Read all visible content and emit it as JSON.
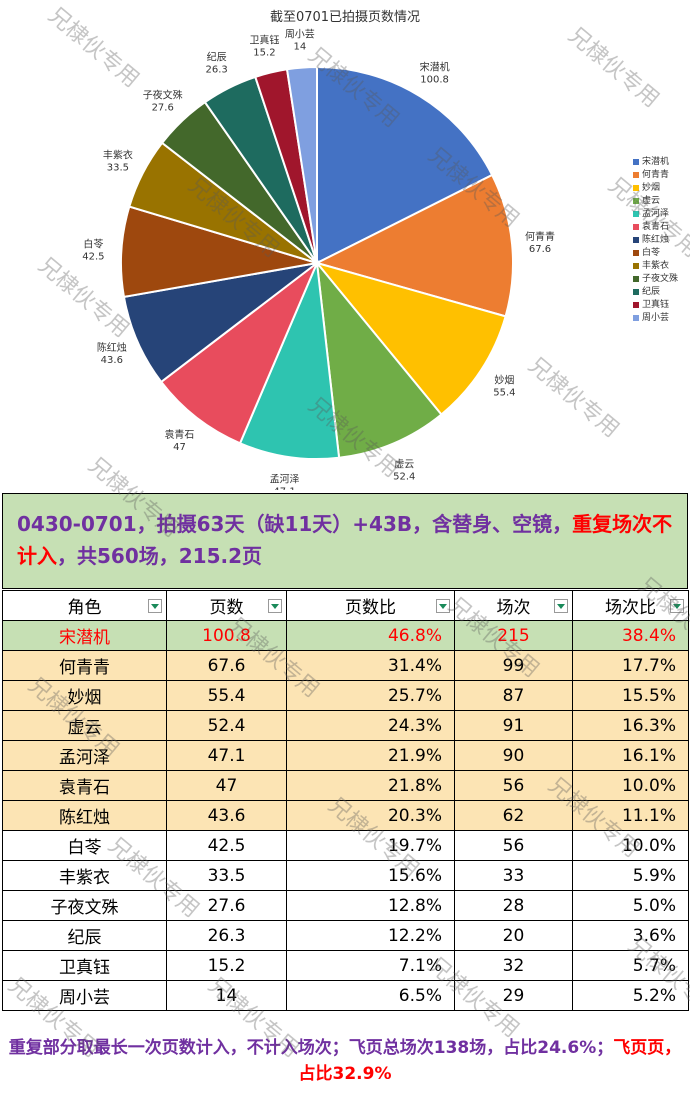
{
  "chart_data": {
    "type": "pie",
    "title": "截至0701已拍摄页数情况",
    "slices": [
      {
        "name": "宋潜机",
        "value": 100.8,
        "color": "#4472c4"
      },
      {
        "name": "何青青",
        "value": 67.6,
        "color": "#ed7d31"
      },
      {
        "name": "妙烟",
        "value": 55.4,
        "color": "#ffc000"
      },
      {
        "name": "虚云",
        "value": 52.4,
        "color": "#70ad47"
      },
      {
        "name": "孟河泽",
        "value": 47.1,
        "color": "#2ec4b0"
      },
      {
        "name": "袁青石",
        "value": 47,
        "color": "#e84c5d"
      },
      {
        "name": "陈红烛",
        "value": 43.6,
        "color": "#264478"
      },
      {
        "name": "白苓",
        "value": 42.5,
        "color": "#9e480e"
      },
      {
        "name": "丰紫衣",
        "value": 33.5,
        "color": "#997300"
      },
      {
        "name": "子夜文殊",
        "value": 27.6,
        "color": "#43682b"
      },
      {
        "name": "纪辰",
        "value": 26.3,
        "color": "#1e6b5f"
      },
      {
        "name": "卫真钰",
        "value": 15.2,
        "color": "#a0162c"
      },
      {
        "name": "周小芸",
        "value": 14,
        "color": "#7f9fe0"
      }
    ],
    "legend_position": "right"
  },
  "headline": {
    "part1": "0430-0701，拍摄63天（缺11天）+43B，含替身、空镜，",
    "part2": "重复场次不计入",
    "part3": "，共560场，215.2页"
  },
  "table": {
    "headers": [
      "角色",
      "页数",
      "页数比",
      "场次",
      "场次比"
    ],
    "rows": [
      [
        "宋潜机",
        "100.8",
        "46.8%",
        "215",
        "38.4%"
      ],
      [
        "何青青",
        "67.6",
        "31.4%",
        "99",
        "17.7%"
      ],
      [
        "妙烟",
        "55.4",
        "25.7%",
        "87",
        "15.5%"
      ],
      [
        "虚云",
        "52.4",
        "24.3%",
        "91",
        "16.3%"
      ],
      [
        "孟河泽",
        "47.1",
        "21.9%",
        "90",
        "16.1%"
      ],
      [
        "袁青石",
        "47",
        "21.8%",
        "56",
        "10.0%"
      ],
      [
        "陈红烛",
        "43.6",
        "20.3%",
        "62",
        "11.1%"
      ],
      [
        "白苓",
        "42.5",
        "19.7%",
        "56",
        "10.0%"
      ],
      [
        "丰紫衣",
        "33.5",
        "15.6%",
        "33",
        "5.9%"
      ],
      [
        "子夜文殊",
        "27.6",
        "12.8%",
        "28",
        "5.0%"
      ],
      [
        "纪辰",
        "26.3",
        "12.2%",
        "20",
        "3.6%"
      ],
      [
        "卫真钰",
        "15.2",
        "7.1%",
        "32",
        "5.7%"
      ],
      [
        "周小芸",
        "14",
        "6.5%",
        "29",
        "5.2%"
      ]
    ]
  },
  "footer": {
    "part1": "重复部分取最长一次页数计入，不计入场次；飞页总场次138场，占比24.6%；",
    "part2": "飞页",
    "part3": "页，占比32.9%"
  },
  "watermark": "兄棣伙专用"
}
